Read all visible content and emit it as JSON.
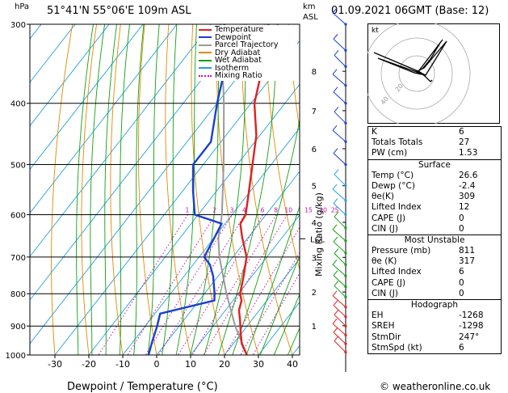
{
  "header": {
    "hpa_unit": "hPa",
    "location": "51°41'N  55°06'E  109m  ASL",
    "km_unit": "km",
    "asl_unit": "ASL",
    "datetime": "01.09.2021  06GMT  (Base: 12)"
  },
  "legend": [
    {
      "label": "Temperature",
      "color": "#e02020",
      "style": "solid"
    },
    {
      "label": "Dewpoint",
      "color": "#1a3fd0",
      "style": "solid"
    },
    {
      "label": "Parcel Trajectory",
      "color": "#9a9a9a",
      "style": "solid"
    },
    {
      "label": "Dry Adiabat",
      "color": "#e08a00",
      "style": "solid"
    },
    {
      "label": "Wet Adiabat",
      "color": "#10a010",
      "style": "solid"
    },
    {
      "label": "Isotherm",
      "color": "#20a0e0",
      "style": "solid"
    },
    {
      "label": "Mixing Ratio",
      "color": "#c010b0",
      "style": "dotted"
    }
  ],
  "chart_data": {
    "type": "line",
    "title": "",
    "xlabel": "Dewpoint / Temperature (°C)",
    "ylabel": "hPa",
    "y2label": "Mixing Ratio (g/kg)",
    "x_ticks": [
      -30,
      -20,
      -10,
      0,
      10,
      20,
      30,
      40
    ],
    "pressure_levels": [
      300,
      400,
      500,
      600,
      700,
      800,
      900,
      1000
    ],
    "km_ticks": [
      {
        "label": "8",
        "p": 356
      },
      {
        "label": "7",
        "p": 411
      },
      {
        "label": "6",
        "p": 472
      },
      {
        "label": "5",
        "p": 540
      },
      {
        "label": "4",
        "p": 617
      },
      {
        "label": "3",
        "p": 701
      },
      {
        "label": "2",
        "p": 795
      },
      {
        "label": "1",
        "p": 899
      }
    ],
    "lcl_label": "LCL",
    "lcl_p": 655,
    "mixing_ratio_labels": [
      "1",
      "2",
      "3",
      "4",
      "6",
      "8",
      "10",
      "15",
      "20",
      "25"
    ],
    "mixing_ratio_values": [
      1,
      2,
      3,
      4,
      6,
      8,
      10,
      15,
      20,
      25
    ],
    "series": [
      {
        "name": "Temperature",
        "color": "#e02020",
        "points": [
          [
            1000,
            26.6
          ],
          [
            960,
            22.5
          ],
          [
            920,
            19.5
          ],
          [
            880,
            16.5
          ],
          [
            850,
            14.0
          ],
          [
            820,
            12.5
          ],
          [
            800,
            10.5
          ],
          [
            750,
            7.5
          ],
          [
            700,
            4.0
          ],
          [
            650,
            -2.0
          ],
          [
            620,
            -5.5
          ],
          [
            600,
            -6.0
          ],
          [
            550,
            -10.5
          ],
          [
            500,
            -15.5
          ],
          [
            450,
            -21.0
          ],
          [
            400,
            -29.0
          ],
          [
            350,
            -35.0
          ],
          [
            300,
            -43.0
          ]
        ]
      },
      {
        "name": "Dewpoint",
        "color": "#1a3fd0",
        "points": [
          [
            1000,
            -2.4
          ],
          [
            950,
            -4.5
          ],
          [
            900,
            -6.5
          ],
          [
            860,
            -8.5
          ],
          [
            820,
            4.5
          ],
          [
            800,
            3.0
          ],
          [
            750,
            -1.5
          ],
          [
            720,
            -5.0
          ],
          [
            700,
            -8.5
          ],
          [
            650,
            -10.0
          ],
          [
            620,
            -11.0
          ],
          [
            600,
            -21.0
          ],
          [
            550,
            -27.0
          ],
          [
            500,
            -33.0
          ],
          [
            460,
            -33.0
          ],
          [
            400,
            -40.0
          ],
          [
            350,
            -46.0
          ],
          [
            300,
            -56.0
          ]
        ]
      },
      {
        "name": "Parcel Trajectory",
        "color": "#9a9a9a",
        "points": [
          [
            1000,
            26.6
          ],
          [
            900,
            16.5
          ],
          [
            800,
            6.5
          ],
          [
            700,
            -4.0
          ],
          [
            655,
            -8.5
          ],
          [
            600,
            -13.0
          ],
          [
            500,
            -24.0
          ],
          [
            400,
            -38.0
          ],
          [
            300,
            -57.0
          ]
        ]
      }
    ]
  },
  "hodograph": {
    "unit_label": "kt",
    "ring_labels": [
      "20",
      "40"
    ]
  },
  "indices": {
    "top": [
      {
        "label": "K",
        "value": "6"
      },
      {
        "label": "Totals Totals",
        "value": "27"
      },
      {
        "label": "PW (cm)",
        "value": "1.53"
      }
    ],
    "surface_title": "Surface",
    "surface": [
      {
        "label": "Temp (°C)",
        "value": "26.6"
      },
      {
        "label": "Dewp (°C)",
        "value": "-2.4"
      },
      {
        "label": "θe(K)",
        "value": "309"
      },
      {
        "label": "Lifted Index",
        "value": "12"
      },
      {
        "label": "CAPE (J)",
        "value": "0"
      },
      {
        "label": "CIN (J)",
        "value": "0"
      }
    ],
    "mu_title": "Most Unstable",
    "most_unstable": [
      {
        "label": "Pressure (mb)",
        "value": "811"
      },
      {
        "label": "θe (K)",
        "value": "317"
      },
      {
        "label": "Lifted Index",
        "value": "6"
      },
      {
        "label": "CAPE (J)",
        "value": "0"
      },
      {
        "label": "CIN (J)",
        "value": "0"
      }
    ],
    "hodo_title": "Hodograph",
    "hodograph_rows": [
      {
        "label": "EH",
        "value": "-1268"
      },
      {
        "label": "SREH",
        "value": "-1298"
      },
      {
        "label": "StmDir",
        "value": "247°"
      },
      {
        "label": "StmSpd (kt)",
        "value": "6"
      }
    ]
  },
  "footer": {
    "copyright": "© weatheronline.co.uk"
  }
}
